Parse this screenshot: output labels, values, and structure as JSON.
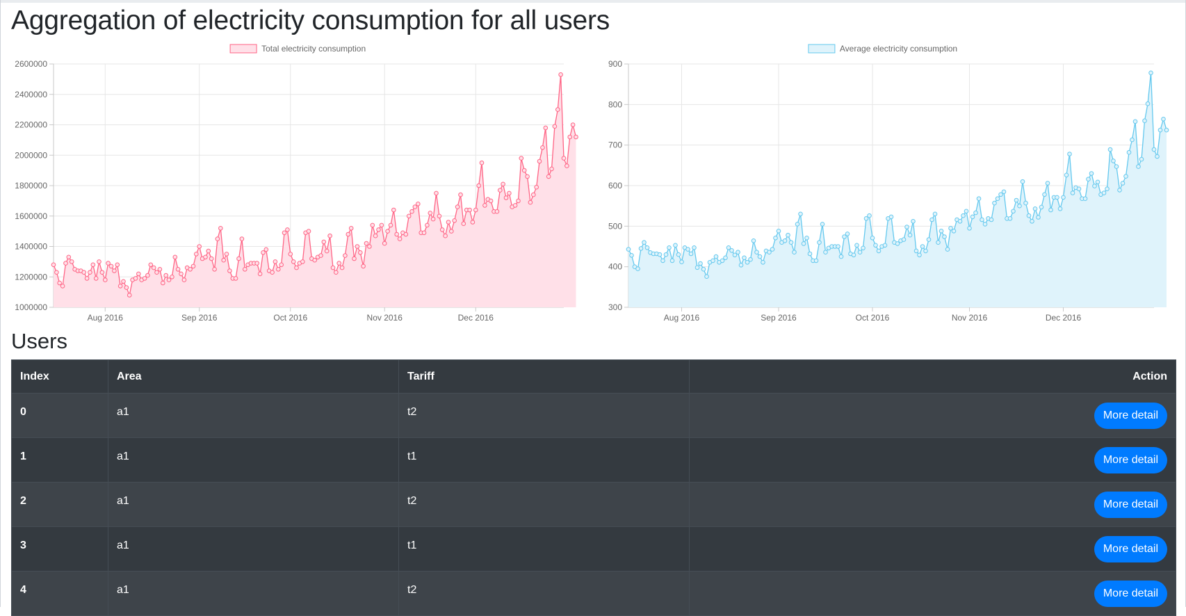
{
  "page": {
    "title": "Aggregation of electricity consumption for all users",
    "users_heading": "Users"
  },
  "chart_data": [
    {
      "type": "area",
      "legend": [
        "Total electricity consumption"
      ],
      "ylim": [
        1000000,
        2600000
      ],
      "yticks": [
        1000000,
        1200000,
        1400000,
        1600000,
        1800000,
        2000000,
        2200000,
        2400000,
        2600000
      ],
      "xlim": [
        "2016-07-15",
        "2016-12-30"
      ],
      "xticks": [
        {
          "date": "2016-08-01",
          "label": "Aug 2016"
        },
        {
          "date": "2016-09-01",
          "label": "Sep 2016"
        },
        {
          "date": "2016-10-01",
          "label": "Oct 2016"
        },
        {
          "date": "2016-11-01",
          "label": "Nov 2016"
        },
        {
          "date": "2016-12-01",
          "label": "Dec 2016"
        }
      ],
      "grid": true,
      "legend_position": "top",
      "colors": {
        "line": "#ff6384",
        "fill": "#ffe0e8"
      },
      "series": [
        {
          "name": "Total electricity consumption",
          "start_date": "2016-07-15",
          "values": [
            1280000,
            1230000,
            1160000,
            1140000,
            1290000,
            1330000,
            1300000,
            1250000,
            1240000,
            1240000,
            1230000,
            1190000,
            1230000,
            1280000,
            1190000,
            1300000,
            1230000,
            1180000,
            1290000,
            1270000,
            1240000,
            1280000,
            1140000,
            1170000,
            1130000,
            1080000,
            1180000,
            1190000,
            1220000,
            1180000,
            1190000,
            1210000,
            1280000,
            1260000,
            1230000,
            1250000,
            1160000,
            1210000,
            1180000,
            1200000,
            1330000,
            1250000,
            1220000,
            1180000,
            1260000,
            1250000,
            1270000,
            1350000,
            1400000,
            1320000,
            1330000,
            1370000,
            1320000,
            1250000,
            1450000,
            1520000,
            1310000,
            1350000,
            1240000,
            1190000,
            1190000,
            1320000,
            1450000,
            1250000,
            1280000,
            1290000,
            1290000,
            1290000,
            1220000,
            1360000,
            1380000,
            1240000,
            1230000,
            1300000,
            1250000,
            1280000,
            1490000,
            1510000,
            1350000,
            1300000,
            1260000,
            1290000,
            1300000,
            1490000,
            1500000,
            1320000,
            1310000,
            1330000,
            1340000,
            1430000,
            1370000,
            1470000,
            1260000,
            1230000,
            1290000,
            1260000,
            1340000,
            1480000,
            1520000,
            1320000,
            1400000,
            1360000,
            1270000,
            1420000,
            1400000,
            1540000,
            1470000,
            1510000,
            1540000,
            1420000,
            1500000,
            1540000,
            1640000,
            1480000,
            1450000,
            1490000,
            1480000,
            1600000,
            1630000,
            1660000,
            1680000,
            1490000,
            1490000,
            1540000,
            1620000,
            1580000,
            1750000,
            1600000,
            1510000,
            1470000,
            1560000,
            1500000,
            1570000,
            1660000,
            1740000,
            1550000,
            1640000,
            1640000,
            1560000,
            1640000,
            1800000,
            1950000,
            1670000,
            1710000,
            1700000,
            1630000,
            1630000,
            1770000,
            1810000,
            1720000,
            1750000,
            1660000,
            1670000,
            1700000,
            1980000,
            1900000,
            1860000,
            1690000,
            1740000,
            1790000,
            1960000,
            2050000,
            2180000,
            1860000,
            1910000,
            2190000,
            2300000,
            2530000,
            1980000,
            1930000,
            2120000,
            2200000,
            2120000
          ]
        }
      ]
    },
    {
      "type": "area",
      "legend": [
        "Average electricity consumption"
      ],
      "ylim": [
        300,
        900
      ],
      "yticks": [
        300,
        400,
        500,
        600,
        700,
        800,
        900
      ],
      "xlim": [
        "2016-07-15",
        "2016-12-30"
      ],
      "xticks": [
        {
          "date": "2016-08-01",
          "label": "Aug 2016"
        },
        {
          "date": "2016-09-01",
          "label": "Sep 2016"
        },
        {
          "date": "2016-10-01",
          "label": "Oct 2016"
        },
        {
          "date": "2016-11-01",
          "label": "Nov 2016"
        },
        {
          "date": "2016-12-01",
          "label": "Dec 2016"
        }
      ],
      "grid": true,
      "legend_position": "top",
      "colors": {
        "line": "#63c8ee",
        "fill": "#dff3fb"
      },
      "series": [
        {
          "name": "Average electricity consumption",
          "start_date": "2016-07-15",
          "values": [
            443,
            428,
            400,
            395,
            445,
            460,
            447,
            435,
            432,
            432,
            430,
            415,
            430,
            447,
            415,
            453,
            430,
            412,
            447,
            443,
            432,
            447,
            398,
            408,
            394,
            376,
            411,
            415,
            425,
            411,
            415,
            422,
            447,
            440,
            429,
            436,
            404,
            422,
            411,
            418,
            464,
            436,
            425,
            411,
            439,
            436,
            443,
            471,
            488,
            460,
            464,
            478,
            460,
            436,
            505,
            530,
            457,
            471,
            432,
            415,
            415,
            460,
            505,
            436,
            446,
            450,
            450,
            450,
            425,
            474,
            481,
            432,
            429,
            453,
            436,
            446,
            519,
            526,
            471,
            453,
            439,
            450,
            453,
            519,
            523,
            460,
            457,
            464,
            467,
            498,
            478,
            512,
            439,
            429,
            450,
            439,
            467,
            516,
            530,
            460,
            488,
            474,
            443,
            495,
            488,
            516,
            512,
            526,
            537,
            495,
            523,
            533,
            568,
            516,
            505,
            519,
            516,
            557,
            568,
            578,
            585,
            519,
            519,
            537,
            564,
            550,
            610,
            557,
            526,
            512,
            543,
            522,
            547,
            578,
            606,
            540,
            571,
            571,
            543,
            571,
            626,
            678,
            582,
            595,
            592,
            568,
            568,
            616,
            630,
            599,
            609,
            578,
            582,
            592,
            689,
            661,
            647,
            589,
            606,
            623,
            682,
            713,
            758,
            647,
            665,
            760,
            802,
            878,
            689,
            672,
            737,
            764,
            737
          ]
        }
      ]
    }
  ],
  "users_table": {
    "headers": {
      "index": "Index",
      "area": "Area",
      "tariff": "Tariff",
      "action": "Action"
    },
    "rows": [
      {
        "index": "0",
        "area": "a1",
        "tariff": "t2",
        "action": "More detail"
      },
      {
        "index": "1",
        "area": "a1",
        "tariff": "t1",
        "action": "More detail"
      },
      {
        "index": "2",
        "area": "a1",
        "tariff": "t2",
        "action": "More detail"
      },
      {
        "index": "3",
        "area": "a1",
        "tariff": "t1",
        "action": "More detail"
      },
      {
        "index": "4",
        "area": "a1",
        "tariff": "t2",
        "action": "More detail"
      }
    ]
  }
}
